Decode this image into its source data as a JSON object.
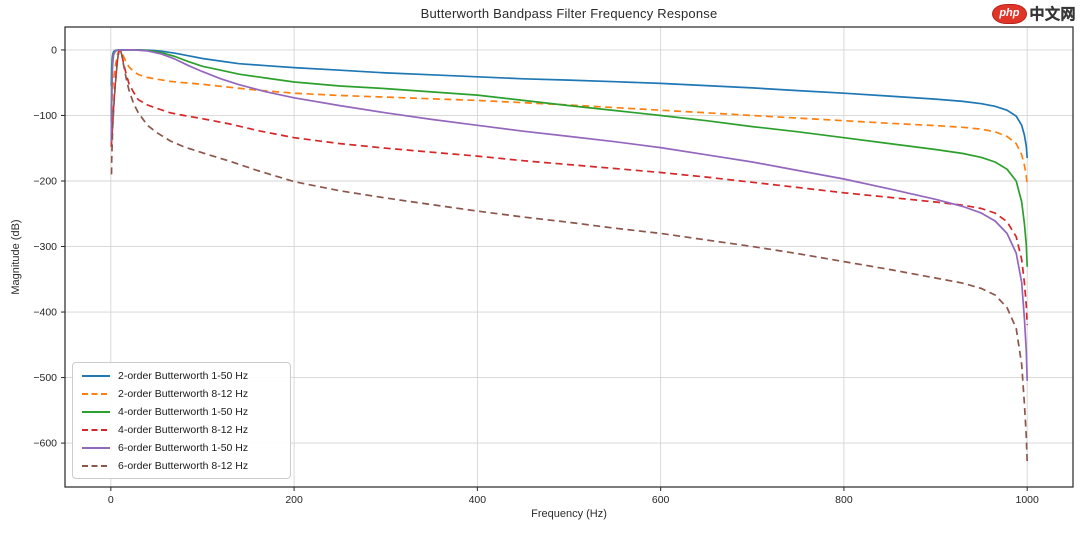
{
  "logo": {
    "badge_text": "php",
    "text": "中文网",
    "badge_color": "#e0362a"
  },
  "chart_data": {
    "type": "line",
    "title": "Butterworth Bandpass Filter Frequency Response",
    "xlabel": "Frequency (Hz)",
    "ylabel": "Magnitude (dB)",
    "xlim": [
      -50,
      1050
    ],
    "ylim": [
      -667,
      35
    ],
    "xticks": [
      0,
      200,
      400,
      600,
      800,
      1000
    ],
    "yticks": [
      0,
      -100,
      -200,
      -300,
      -400,
      -500,
      -600
    ],
    "grid": true,
    "grid_color": "#d4d4d4",
    "spine_color": "#262626",
    "legend_position": "lower left",
    "series": [
      {
        "name": "2-order Butterworth 1-50 Hz",
        "color": "#1f77b4",
        "style": "solid",
        "points": [
          [
            0.5,
            -55
          ],
          [
            1,
            -28
          ],
          [
            1.5,
            -13
          ],
          [
            2,
            -7
          ],
          [
            3,
            -2.5
          ],
          [
            5,
            -0.6
          ],
          [
            8,
            -0.1
          ],
          [
            15,
            0
          ],
          [
            30,
            0
          ],
          [
            45,
            -0.5
          ],
          [
            55,
            -2
          ],
          [
            70,
            -5
          ],
          [
            85,
            -9
          ],
          [
            100,
            -13
          ],
          [
            120,
            -17
          ],
          [
            140,
            -21
          ],
          [
            170,
            -24
          ],
          [
            200,
            -27
          ],
          [
            250,
            -31
          ],
          [
            300,
            -35
          ],
          [
            350,
            -38
          ],
          [
            400,
            -41
          ],
          [
            450,
            -44
          ],
          [
            500,
            -46
          ],
          [
            550,
            -48.5
          ],
          [
            600,
            -51
          ],
          [
            650,
            -54.5
          ],
          [
            700,
            -58
          ],
          [
            750,
            -62
          ],
          [
            800,
            -66
          ],
          [
            850,
            -70.5
          ],
          [
            900,
            -75
          ],
          [
            930,
            -78.5
          ],
          [
            950,
            -82
          ],
          [
            965,
            -86
          ],
          [
            978,
            -92
          ],
          [
            988,
            -101
          ],
          [
            994,
            -115
          ],
          [
            997,
            -130
          ],
          [
            999,
            -147
          ],
          [
            1000,
            -165
          ]
        ]
      },
      {
        "name": "2-order Butterworth 8-12 Hz",
        "color": "#ff7f0e",
        "style": "dashed",
        "points": [
          [
            0.5,
            -95
          ],
          [
            1,
            -82
          ],
          [
            1.5,
            -68
          ],
          [
            2,
            -58
          ],
          [
            3,
            -45
          ],
          [
            4,
            -34
          ],
          [
            5,
            -25
          ],
          [
            6,
            -17
          ],
          [
            7,
            -9.5
          ],
          [
            8,
            -4
          ],
          [
            9,
            -1
          ],
          [
            10,
            0
          ],
          [
            11,
            -1
          ],
          [
            12,
            -3.5
          ],
          [
            13,
            -7
          ],
          [
            15,
            -13.5
          ],
          [
            17,
            -19
          ],
          [
            20,
            -26
          ],
          [
            25,
            -33
          ],
          [
            30,
            -37.5
          ],
          [
            40,
            -42
          ],
          [
            50,
            -44.5
          ],
          [
            65,
            -48
          ],
          [
            80,
            -50
          ],
          [
            100,
            -52.5
          ],
          [
            130,
            -57
          ],
          [
            160,
            -61.5
          ],
          [
            200,
            -66
          ],
          [
            250,
            -69.5
          ],
          [
            300,
            -72
          ],
          [
            350,
            -74.5
          ],
          [
            400,
            -77
          ],
          [
            450,
            -80.5
          ],
          [
            500,
            -84
          ],
          [
            550,
            -88
          ],
          [
            600,
            -92
          ],
          [
            650,
            -96
          ],
          [
            700,
            -100
          ],
          [
            750,
            -104
          ],
          [
            800,
            -108
          ],
          [
            850,
            -112
          ],
          [
            900,
            -115.5
          ],
          [
            930,
            -118
          ],
          [
            950,
            -121
          ],
          [
            965,
            -125
          ],
          [
            978,
            -132
          ],
          [
            988,
            -143
          ],
          [
            994,
            -160
          ],
          [
            997,
            -176
          ],
          [
            999,
            -192
          ],
          [
            1000,
            -207
          ]
        ]
      },
      {
        "name": "4-order Butterworth 1-50 Hz",
        "color": "#2ca02c",
        "style": "solid",
        "points": [
          [
            0.5,
            -110
          ],
          [
            1,
            -56
          ],
          [
            1.5,
            -27
          ],
          [
            2,
            -14
          ],
          [
            3,
            -5
          ],
          [
            5,
            -1.2
          ],
          [
            8,
            -0.2
          ],
          [
            15,
            0
          ],
          [
            28,
            0
          ],
          [
            42,
            -1
          ],
          [
            55,
            -4
          ],
          [
            70,
            -10
          ],
          [
            85,
            -18
          ],
          [
            100,
            -25
          ],
          [
            120,
            -31
          ],
          [
            140,
            -37
          ],
          [
            170,
            -43
          ],
          [
            200,
            -49
          ],
          [
            250,
            -55
          ],
          [
            300,
            -59
          ],
          [
            350,
            -64
          ],
          [
            400,
            -69
          ],
          [
            450,
            -77
          ],
          [
            500,
            -85
          ],
          [
            550,
            -92.5
          ],
          [
            600,
            -100
          ],
          [
            650,
            -108
          ],
          [
            700,
            -117
          ],
          [
            750,
            -125
          ],
          [
            800,
            -134
          ],
          [
            850,
            -143
          ],
          [
            900,
            -152
          ],
          [
            930,
            -158
          ],
          [
            950,
            -164
          ],
          [
            965,
            -171
          ],
          [
            978,
            -182
          ],
          [
            988,
            -200
          ],
          [
            994,
            -232
          ],
          [
            997,
            -265
          ],
          [
            999,
            -298
          ],
          [
            1000,
            -331
          ]
        ]
      },
      {
        "name": "4-order Butterworth 8-12 Hz",
        "color": "#d62728",
        "style": "dashed",
        "points": [
          [
            0.5,
            -148
          ],
          [
            1,
            -138
          ],
          [
            2,
            -112
          ],
          [
            3,
            -87
          ],
          [
            4,
            -66
          ],
          [
            5,
            -48
          ],
          [
            6,
            -33
          ],
          [
            7,
            -18.5
          ],
          [
            8,
            -8
          ],
          [
            9,
            -2
          ],
          [
            10,
            0
          ],
          [
            11,
            -2
          ],
          [
            12,
            -7
          ],
          [
            13,
            -14
          ],
          [
            15,
            -27
          ],
          [
            17,
            -38
          ],
          [
            20,
            -52
          ],
          [
            25,
            -65
          ],
          [
            30,
            -76
          ],
          [
            40,
            -84
          ],
          [
            50,
            -89
          ],
          [
            65,
            -96
          ],
          [
            80,
            -100
          ],
          [
            100,
            -105
          ],
          [
            130,
            -113
          ],
          [
            160,
            -123
          ],
          [
            200,
            -134
          ],
          [
            250,
            -143
          ],
          [
            300,
            -150
          ],
          [
            350,
            -156
          ],
          [
            400,
            -162
          ],
          [
            450,
            -169
          ],
          [
            500,
            -175
          ],
          [
            550,
            -181
          ],
          [
            600,
            -187
          ],
          [
            650,
            -194
          ],
          [
            700,
            -202
          ],
          [
            750,
            -210
          ],
          [
            800,
            -218
          ],
          [
            850,
            -225
          ],
          [
            900,
            -232
          ],
          [
            930,
            -237
          ],
          [
            950,
            -242
          ],
          [
            965,
            -249
          ],
          [
            978,
            -262
          ],
          [
            988,
            -285
          ],
          [
            994,
            -320
          ],
          [
            997,
            -355
          ],
          [
            999,
            -390
          ],
          [
            1000,
            -420
          ]
        ]
      },
      {
        "name": "6-order Butterworth 1-50 Hz",
        "color": "#9467bd",
        "style": "solid",
        "points": [
          [
            0.5,
            -140
          ],
          [
            1,
            -84
          ],
          [
            1.5,
            -40
          ],
          [
            2,
            -21
          ],
          [
            3,
            -7.5
          ],
          [
            5,
            -1.8
          ],
          [
            8,
            -0.3
          ],
          [
            15,
            0
          ],
          [
            25,
            0
          ],
          [
            40,
            -1.5
          ],
          [
            55,
            -6
          ],
          [
            70,
            -14
          ],
          [
            85,
            -24
          ],
          [
            100,
            -33
          ],
          [
            120,
            -44
          ],
          [
            140,
            -53
          ],
          [
            170,
            -64
          ],
          [
            200,
            -73
          ],
          [
            250,
            -85
          ],
          [
            300,
            -96
          ],
          [
            350,
            -106
          ],
          [
            400,
            -115
          ],
          [
            450,
            -124
          ],
          [
            500,
            -132
          ],
          [
            550,
            -140
          ],
          [
            600,
            -149
          ],
          [
            650,
            -160
          ],
          [
            700,
            -171
          ],
          [
            750,
            -184
          ],
          [
            800,
            -197
          ],
          [
            850,
            -212
          ],
          [
            900,
            -228
          ],
          [
            930,
            -239
          ],
          [
            950,
            -249
          ],
          [
            965,
            -261
          ],
          [
            978,
            -280
          ],
          [
            988,
            -310
          ],
          [
            994,
            -355
          ],
          [
            997,
            -410
          ],
          [
            999,
            -460
          ],
          [
            1000,
            -505
          ]
        ]
      },
      {
        "name": "6-order Butterworth 8-12 Hz",
        "color": "#8c564b",
        "style": "dashed",
        "points": [
          [
            0.7,
            -190
          ],
          [
            1,
            -168
          ],
          [
            2,
            -118
          ],
          [
            3,
            -92
          ],
          [
            4,
            -70
          ],
          [
            5,
            -52
          ],
          [
            6,
            -36
          ],
          [
            7,
            -20
          ],
          [
            8,
            -9
          ],
          [
            9,
            -2.2
          ],
          [
            10,
            0
          ],
          [
            11,
            -2.2
          ],
          [
            12,
            -8
          ],
          [
            13,
            -16
          ],
          [
            15,
            -31
          ],
          [
            17,
            -45
          ],
          [
            20,
            -62
          ],
          [
            25,
            -82
          ],
          [
            30,
            -96
          ],
          [
            40,
            -115
          ],
          [
            50,
            -126
          ],
          [
            65,
            -139
          ],
          [
            80,
            -148
          ],
          [
            100,
            -157
          ],
          [
            130,
            -170
          ],
          [
            160,
            -184
          ],
          [
            200,
            -201
          ],
          [
            250,
            -215
          ],
          [
            300,
            -226
          ],
          [
            350,
            -236
          ],
          [
            400,
            -246
          ],
          [
            450,
            -255
          ],
          [
            500,
            -263
          ],
          [
            550,
            -272
          ],
          [
            600,
            -280
          ],
          [
            650,
            -290
          ],
          [
            700,
            -300
          ],
          [
            750,
            -311
          ],
          [
            800,
            -323
          ],
          [
            850,
            -335
          ],
          [
            900,
            -348
          ],
          [
            930,
            -356
          ],
          [
            950,
            -364
          ],
          [
            965,
            -374
          ],
          [
            978,
            -393
          ],
          [
            988,
            -425
          ],
          [
            994,
            -480
          ],
          [
            997,
            -540
          ],
          [
            999,
            -590
          ],
          [
            1000,
            -630
          ]
        ]
      }
    ]
  }
}
